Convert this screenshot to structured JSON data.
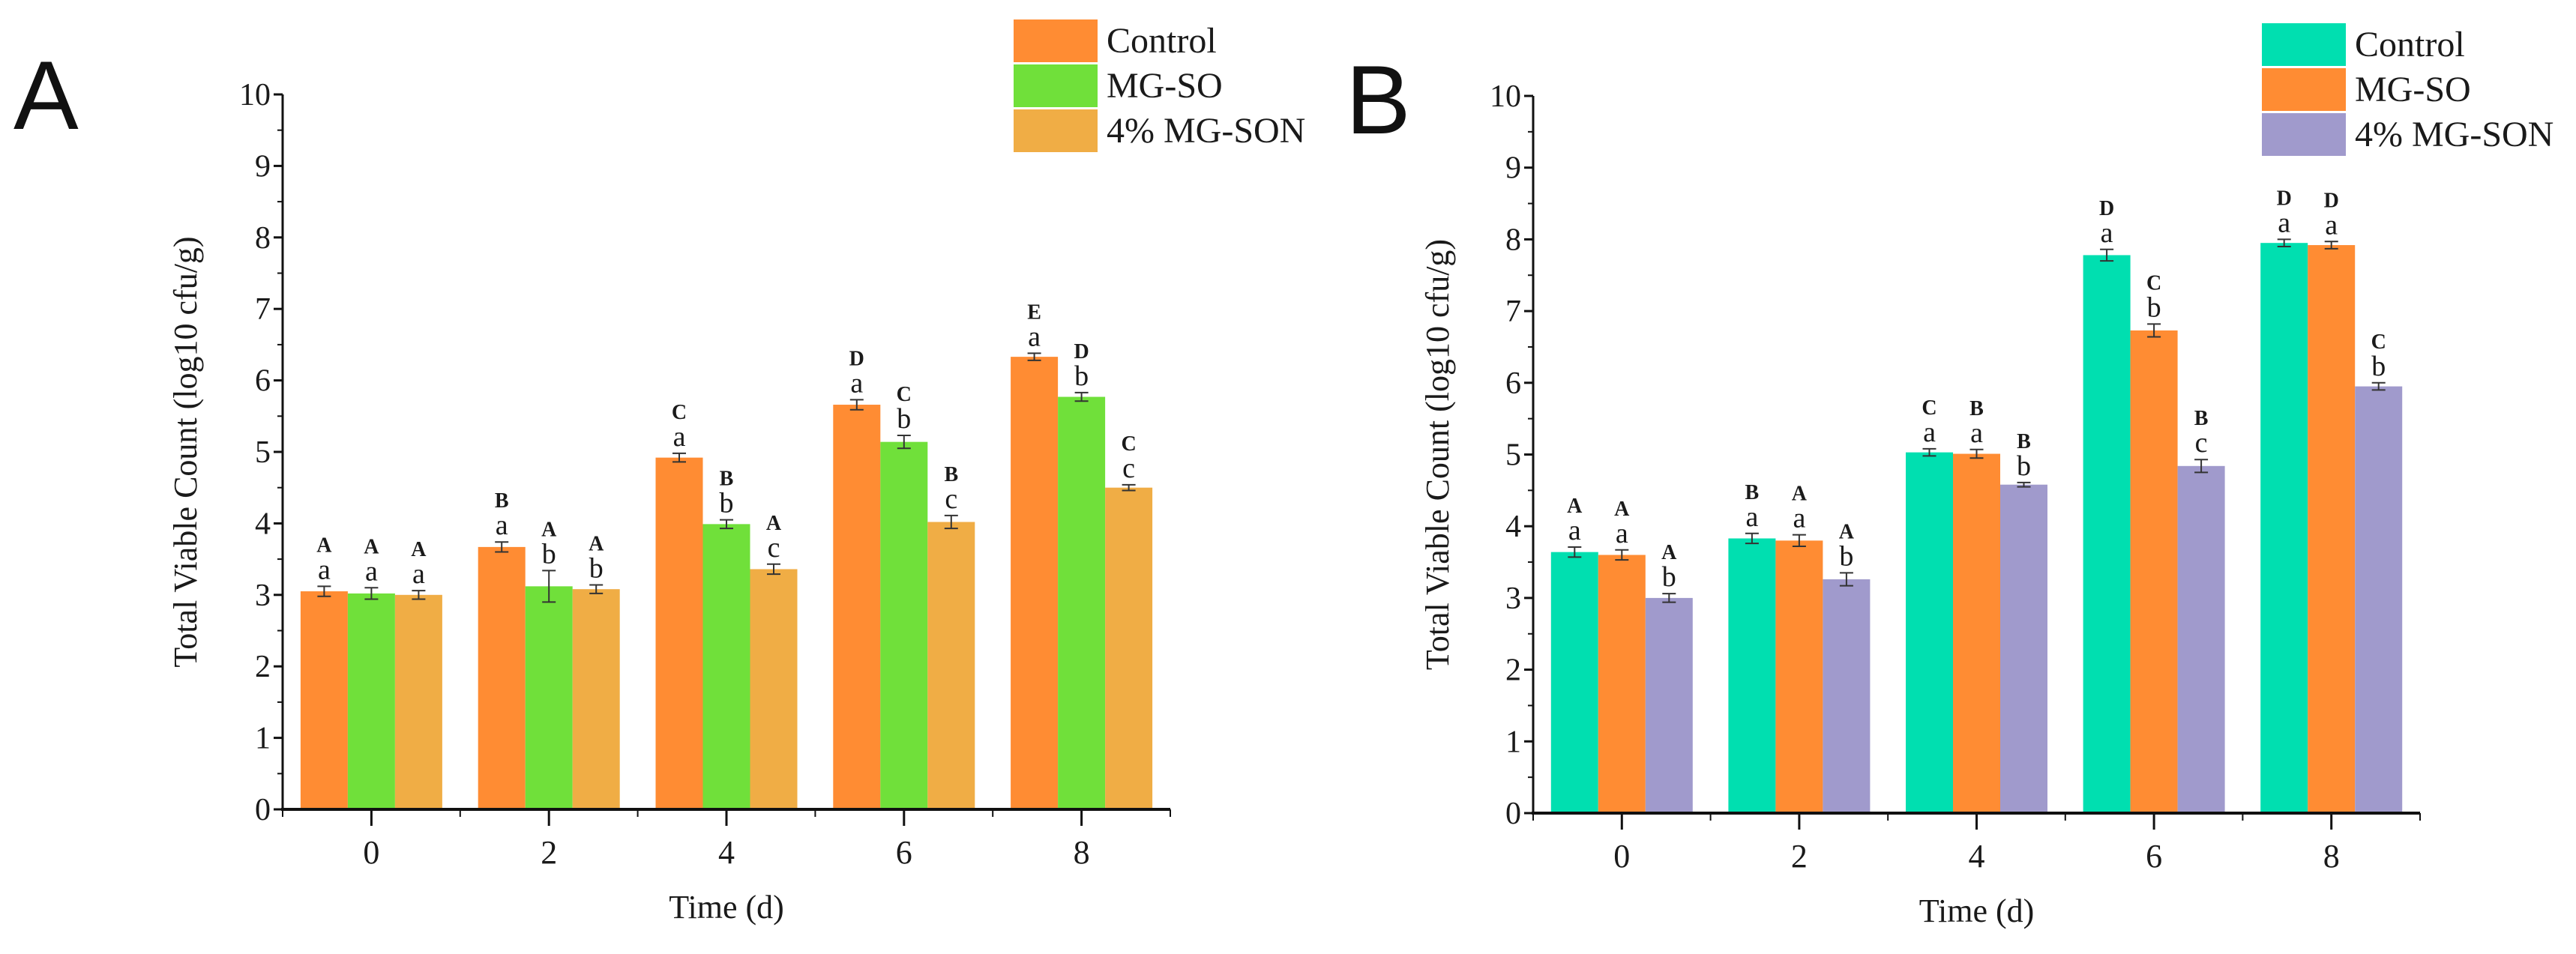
{
  "chart_data": [
    {
      "type": "bar",
      "panel_label": "A",
      "title": "",
      "xlabel": "Time (d)",
      "ylabel": "Total Viable Count (log10 cfu/g)",
      "categories": [
        "0",
        "2",
        "4",
        "6",
        "8"
      ],
      "ylim": [
        0,
        10
      ],
      "yticks": [
        "0",
        "1",
        "2",
        "3",
        "4",
        "5",
        "6",
        "7",
        "8",
        "9",
        "10"
      ],
      "legend_position": "top-right",
      "series": [
        {
          "name": "Control",
          "color": "#FF8C33",
          "values": [
            3.05,
            3.67,
            4.92,
            5.66,
            6.33
          ],
          "errors": [
            0.07,
            0.07,
            0.06,
            0.07,
            0.05
          ],
          "upper_letters": [
            "A",
            "B",
            "C",
            "D",
            "E"
          ],
          "lower_letters": [
            "a",
            "a",
            "a",
            "a",
            "a"
          ]
        },
        {
          "name": "MG-SO",
          "color": "#70E03A",
          "values": [
            3.02,
            3.12,
            3.99,
            5.14,
            5.77
          ],
          "errors": [
            0.08,
            0.22,
            0.06,
            0.09,
            0.06
          ],
          "upper_letters": [
            "A",
            "A",
            "B",
            "C",
            "D"
          ],
          "lower_letters": [
            "a",
            "b",
            "b",
            "b",
            "b"
          ]
        },
        {
          "name": "4% MG-SON",
          "color": "#F0AD45",
          "values": [
            3.0,
            3.08,
            3.36,
            4.02,
            4.5
          ],
          "errors": [
            0.06,
            0.06,
            0.07,
            0.09,
            0.04
          ],
          "upper_letters": [
            "A",
            "A",
            "A",
            "B",
            "C"
          ],
          "lower_letters": [
            "a",
            "b",
            "c",
            "c",
            "c"
          ]
        }
      ]
    },
    {
      "type": "bar",
      "panel_label": "B",
      "title": "",
      "xlabel": "Time (d)",
      "ylabel": "Total Viable Count (log10 cfu/g)",
      "categories": [
        "0",
        "2",
        "4",
        "6",
        "8"
      ],
      "ylim": [
        0,
        10
      ],
      "yticks": [
        "0",
        "1",
        "2",
        "3",
        "4",
        "5",
        "6",
        "7",
        "8",
        "9",
        "10"
      ],
      "legend_position": "top-right",
      "series": [
        {
          "name": "Control",
          "color": "#00DFB0",
          "values": [
            3.64,
            3.83,
            5.03,
            7.78,
            7.95
          ],
          "errors": [
            0.07,
            0.07,
            0.05,
            0.08,
            0.05
          ],
          "upper_letters": [
            "A",
            "B",
            "C",
            "D",
            "D"
          ],
          "lower_letters": [
            "a",
            "a",
            "a",
            "a",
            "a"
          ]
        },
        {
          "name": "MG-SO",
          "color": "#FF8C33",
          "values": [
            3.6,
            3.8,
            5.01,
            6.73,
            7.92
          ],
          "errors": [
            0.07,
            0.08,
            0.06,
            0.09,
            0.05
          ],
          "upper_letters": [
            "A",
            "A",
            "B",
            "C",
            "D"
          ],
          "lower_letters": [
            "a",
            "a",
            "a",
            "b",
            "a"
          ]
        },
        {
          "name": "4% MG-SON",
          "color": "#A09ACC",
          "values": [
            3.0,
            3.26,
            4.58,
            4.84,
            5.95
          ],
          "errors": [
            0.06,
            0.09,
            0.03,
            0.09,
            0.05
          ],
          "upper_letters": [
            "A",
            "A",
            "B",
            "B",
            "C"
          ],
          "lower_letters": [
            "b",
            "b",
            "b",
            "c",
            "b"
          ]
        }
      ]
    }
  ]
}
